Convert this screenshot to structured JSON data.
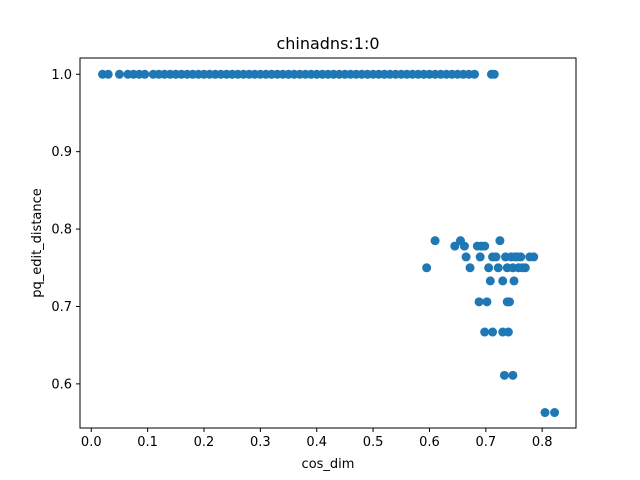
{
  "chart_data": {
    "type": "scatter",
    "title": "chinadns:1:0",
    "xlabel": "cos_dim",
    "ylabel": "pq_edit_distance",
    "xlim": [
      -0.02,
      0.86
    ],
    "ylim": [
      0.543,
      1.021
    ],
    "xticks": [
      0.0,
      0.1,
      0.2,
      0.3,
      0.4,
      0.5,
      0.6,
      0.7,
      0.8
    ],
    "xtick_labels": [
      "0.0",
      "0.1",
      "0.2",
      "0.3",
      "0.4",
      "0.5",
      "0.6",
      "0.7",
      "0.8"
    ],
    "yticks": [
      0.6,
      0.7,
      0.8,
      0.9,
      1.0
    ],
    "ytick_labels": [
      "0.6",
      "0.7",
      "0.8",
      "0.9",
      "1.0"
    ],
    "grid": false,
    "color": "#1f77b4",
    "series": [
      {
        "name": "",
        "points": [
          [
            0.02,
            1.0
          ],
          [
            0.03,
            1.0
          ],
          [
            0.05,
            1.0
          ],
          [
            0.065,
            1.0
          ],
          [
            0.075,
            1.0
          ],
          [
            0.085,
            1.0
          ],
          [
            0.095,
            1.0
          ],
          [
            0.11,
            1.0
          ],
          [
            0.12,
            1.0
          ],
          [
            0.13,
            1.0
          ],
          [
            0.14,
            1.0
          ],
          [
            0.15,
            1.0
          ],
          [
            0.16,
            1.0
          ],
          [
            0.17,
            1.0
          ],
          [
            0.18,
            1.0
          ],
          [
            0.19,
            1.0
          ],
          [
            0.2,
            1.0
          ],
          [
            0.21,
            1.0
          ],
          [
            0.22,
            1.0
          ],
          [
            0.23,
            1.0
          ],
          [
            0.24,
            1.0
          ],
          [
            0.25,
            1.0
          ],
          [
            0.26,
            1.0
          ],
          [
            0.27,
            1.0
          ],
          [
            0.28,
            1.0
          ],
          [
            0.29,
            1.0
          ],
          [
            0.3,
            1.0
          ],
          [
            0.31,
            1.0
          ],
          [
            0.32,
            1.0
          ],
          [
            0.33,
            1.0
          ],
          [
            0.34,
            1.0
          ],
          [
            0.35,
            1.0
          ],
          [
            0.36,
            1.0
          ],
          [
            0.37,
            1.0
          ],
          [
            0.38,
            1.0
          ],
          [
            0.39,
            1.0
          ],
          [
            0.4,
            1.0
          ],
          [
            0.41,
            1.0
          ],
          [
            0.42,
            1.0
          ],
          [
            0.43,
            1.0
          ],
          [
            0.44,
            1.0
          ],
          [
            0.45,
            1.0
          ],
          [
            0.46,
            1.0
          ],
          [
            0.47,
            1.0
          ],
          [
            0.48,
            1.0
          ],
          [
            0.49,
            1.0
          ],
          [
            0.5,
            1.0
          ],
          [
            0.51,
            1.0
          ],
          [
            0.52,
            1.0
          ],
          [
            0.53,
            1.0
          ],
          [
            0.54,
            1.0
          ],
          [
            0.55,
            1.0
          ],
          [
            0.56,
            1.0
          ],
          [
            0.57,
            1.0
          ],
          [
            0.58,
            1.0
          ],
          [
            0.59,
            1.0
          ],
          [
            0.6,
            1.0
          ],
          [
            0.61,
            1.0
          ],
          [
            0.62,
            1.0
          ],
          [
            0.63,
            1.0
          ],
          [
            0.64,
            1.0
          ],
          [
            0.65,
            1.0
          ],
          [
            0.66,
            1.0
          ],
          [
            0.67,
            1.0
          ],
          [
            0.68,
            1.0
          ],
          [
            0.71,
            1.0
          ],
          [
            0.715,
            1.0
          ],
          [
            0.595,
            0.75
          ],
          [
            0.61,
            0.785
          ],
          [
            0.645,
            0.778
          ],
          [
            0.655,
            0.785
          ],
          [
            0.662,
            0.778
          ],
          [
            0.665,
            0.764
          ],
          [
            0.672,
            0.75
          ],
          [
            0.685,
            0.778
          ],
          [
            0.69,
            0.764
          ],
          [
            0.692,
            0.778
          ],
          [
            0.698,
            0.778
          ],
          [
            0.705,
            0.75
          ],
          [
            0.688,
            0.706
          ],
          [
            0.698,
            0.667
          ],
          [
            0.702,
            0.706
          ],
          [
            0.708,
            0.733
          ],
          [
            0.712,
            0.667
          ],
          [
            0.712,
            0.764
          ],
          [
            0.718,
            0.764
          ],
          [
            0.722,
            0.75
          ],
          [
            0.725,
            0.785
          ],
          [
            0.73,
            0.733
          ],
          [
            0.73,
            0.667
          ],
          [
            0.735,
            0.764
          ],
          [
            0.738,
            0.75
          ],
          [
            0.738,
            0.706
          ],
          [
            0.74,
            0.667
          ],
          [
            0.742,
            0.706
          ],
          [
            0.745,
            0.764
          ],
          [
            0.748,
            0.75
          ],
          [
            0.75,
            0.733
          ],
          [
            0.752,
            0.764
          ],
          [
            0.756,
            0.764
          ],
          [
            0.758,
            0.75
          ],
          [
            0.762,
            0.764
          ],
          [
            0.765,
            0.75
          ],
          [
            0.77,
            0.75
          ],
          [
            0.778,
            0.764
          ],
          [
            0.785,
            0.764
          ],
          [
            0.733,
            0.611
          ],
          [
            0.748,
            0.611
          ],
          [
            0.805,
            0.563
          ],
          [
            0.822,
            0.563
          ]
        ]
      }
    ]
  }
}
